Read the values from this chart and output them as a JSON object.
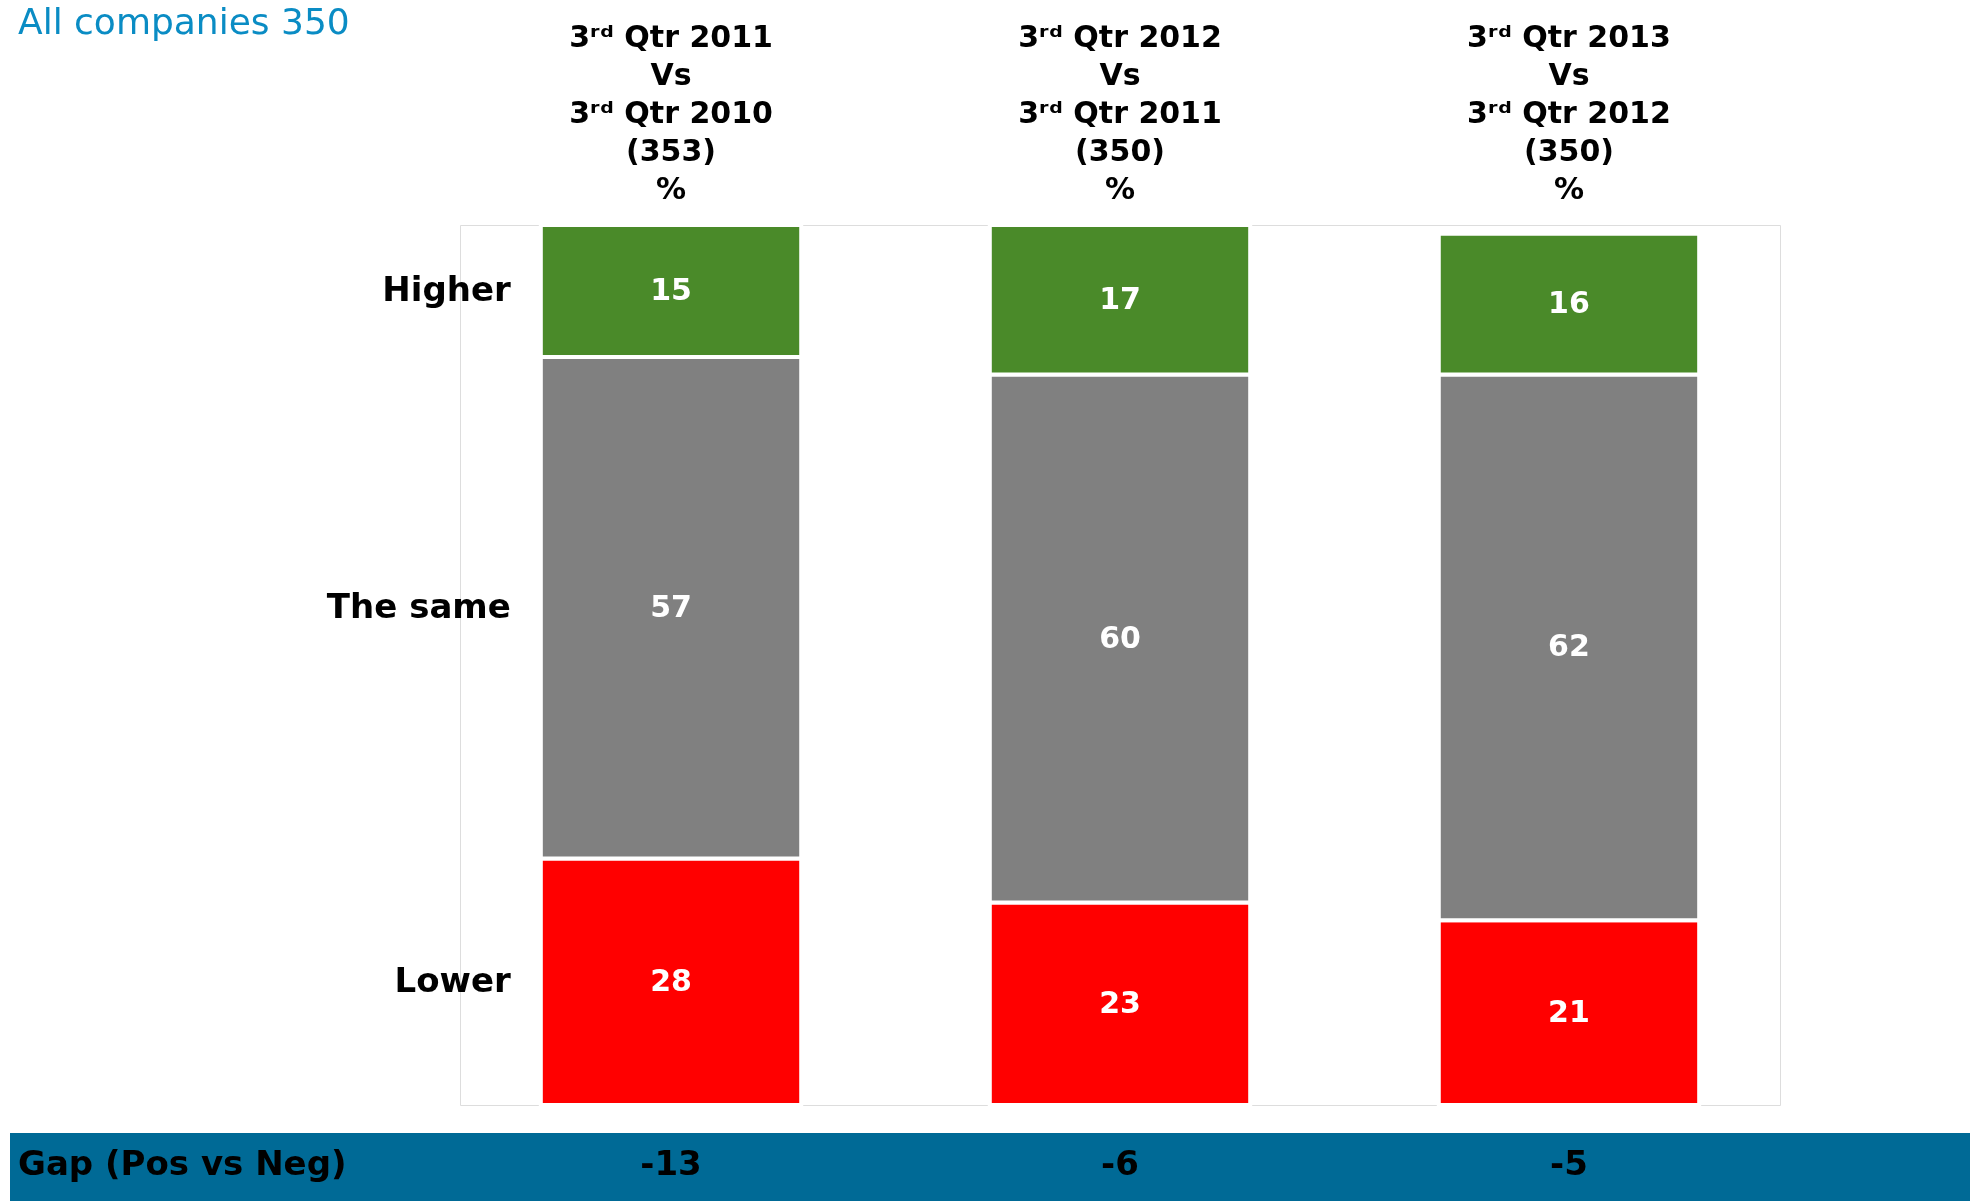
{
  "chart_data": {
    "type": "bar",
    "stacked": true,
    "data_labels": true,
    "grid": false,
    "title": "All companies 350",
    "categories": [
      "3ʳᵈ Qtr 2011\nVs\n3ʳᵈ Qtr 2010\n(353)\n%",
      "3ʳᵈ Qtr 2012\nVs\n3ʳᵈ Qtr 2011\n(350)\n%",
      "3ʳᵈ Qtr 2013\nVs\n3ʳᵈ Qtr 2012\n(350)\n%"
    ],
    "series": [
      {
        "name": "Lower",
        "color": "#ff0000",
        "values": [
          28,
          23,
          21
        ]
      },
      {
        "name": "The same",
        "color": "#808080",
        "values": [
          57,
          60,
          62
        ]
      },
      {
        "name": "Higher",
        "color": "#4a8a29",
        "values": [
          15,
          17,
          16
        ]
      }
    ],
    "annotations": [
      "Gap (Pos vs Neg)",
      "-13",
      "-6",
      "-5"
    ]
  }
}
